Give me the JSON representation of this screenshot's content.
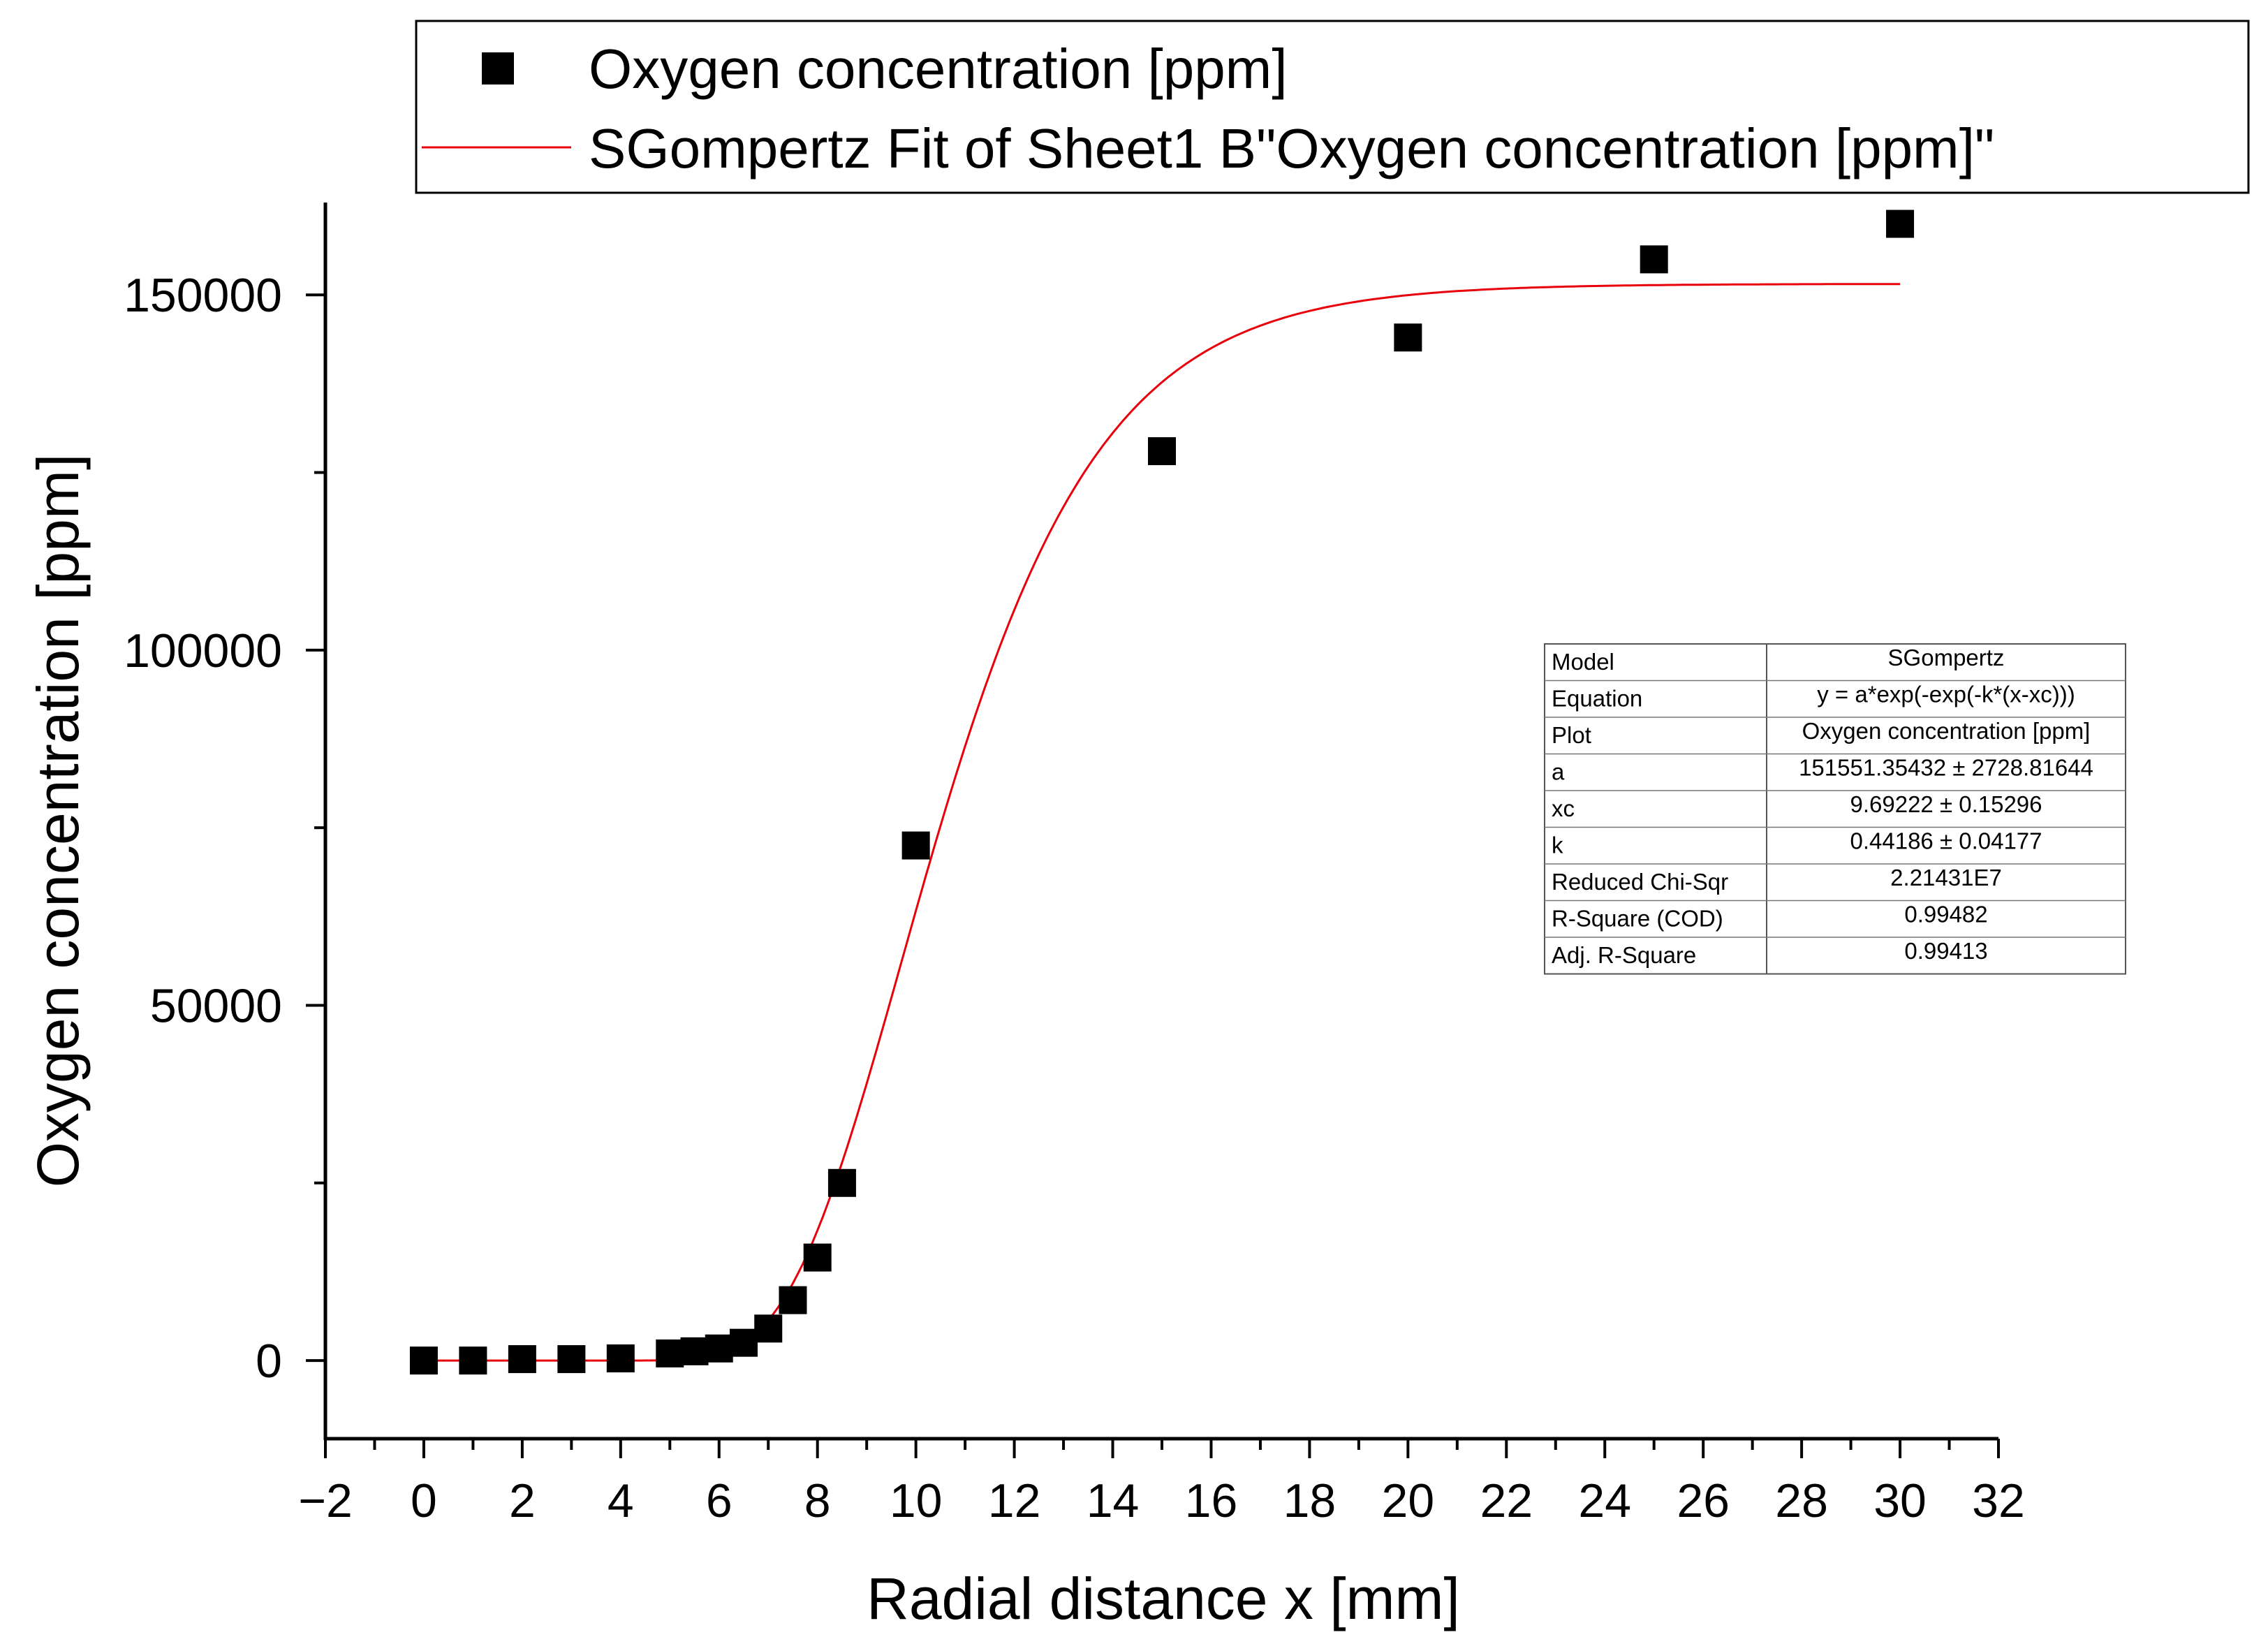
{
  "chart_data": {
    "type": "scatter",
    "title": "",
    "xlabel": "Radial distance x [mm]",
    "ylabel": "Oxygen concentration [ppm]",
    "xlim": [
      -2,
      32
    ],
    "ylim": [
      -11000,
      163000
    ],
    "x_ticks": [
      -2,
      0,
      2,
      4,
      6,
      8,
      10,
      12,
      14,
      16,
      18,
      20,
      22,
      24,
      26,
      28,
      30,
      32
    ],
    "x_tick_labels": [
      "−2",
      "0",
      "2",
      "4",
      "6",
      "8",
      "10",
      "12",
      "14",
      "16",
      "18",
      "20",
      "22",
      "24",
      "26",
      "28",
      "30",
      "32"
    ],
    "y_ticks": [
      0,
      50000,
      100000,
      150000
    ],
    "y_tick_labels": [
      "0",
      "50000",
      "100000",
      "150000"
    ],
    "grid": false,
    "legend_position": "top",
    "series": [
      {
        "name": "Oxygen concentration [ppm]",
        "kind": "scatter",
        "marker": "square",
        "color": "#000000",
        "x": [
          0,
          1,
          2,
          3,
          4,
          5,
          5.5,
          6,
          6.5,
          7,
          7.5,
          8,
          8.5,
          10,
          15,
          20,
          25,
          30
        ],
        "y": [
          0,
          0,
          200,
          200,
          300,
          1000,
          1300,
          1700,
          2500,
          4500,
          8500,
          14500,
          25000,
          72500,
          128000,
          144000,
          155000,
          160000
        ]
      },
      {
        "name": "SGompertz Fit of Sheet1 B\"Oxygen concentration [ppm]\"",
        "kind": "line",
        "color": "#e8000b",
        "model": "SGompertz",
        "params": {
          "a": 151551.35432,
          "xc": 9.69222,
          "k": 0.44186
        },
        "x_range": [
          0,
          30
        ]
      }
    ],
    "fit_table": {
      "rows": [
        [
          "Model",
          "SGompertz"
        ],
        [
          "Equation",
          "y = a*exp(-exp(-k*(x-xc)))"
        ],
        [
          "Plot",
          "Oxygen concentration [ppm]"
        ],
        [
          "a",
          "151551.35432 ± 2728.81644"
        ],
        [
          "xc",
          "9.69222 ± 0.15296"
        ],
        [
          "k",
          "0.44186 ± 0.04177"
        ],
        [
          "Reduced Chi-Sqr",
          "2.21431E7"
        ],
        [
          "R-Square (COD)",
          "0.99482"
        ],
        [
          "Adj. R-Square",
          "0.99413"
        ]
      ]
    }
  }
}
